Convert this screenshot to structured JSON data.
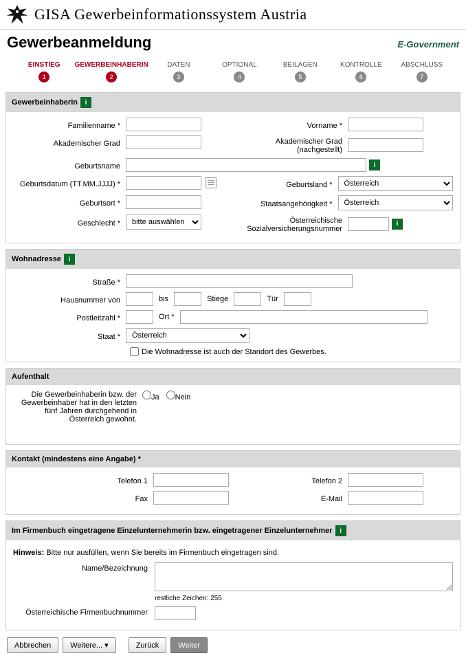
{
  "app": {
    "title": "GISA Gewerbeinformationssystem Austria"
  },
  "page": {
    "title": "Gewerbeanmeldung",
    "egov": "E-Government"
  },
  "stepper": {
    "steps": [
      {
        "label": "EINSTIEG",
        "num": "1",
        "state": "done"
      },
      {
        "label": "GEWERBEINHABERIN",
        "num": "2",
        "state": "current"
      },
      {
        "label": "DATEN",
        "num": "3",
        "state": "todo"
      },
      {
        "label": "OPTIONAL",
        "num": "4",
        "state": "todo"
      },
      {
        "label": "BEILAGEN",
        "num": "5",
        "state": "todo"
      },
      {
        "label": "KONTROLLE",
        "num": "6",
        "state": "todo"
      },
      {
        "label": "ABSCHLUSS",
        "num": "7",
        "state": "todo"
      }
    ]
  },
  "sec_inhaber": {
    "title": "GewerbeinhaberIn",
    "familienname": "Familienname *",
    "vorname": "Vorname *",
    "akad": "Akademischer Grad",
    "akad_nach": "Akademischer Grad (nachgestellt)",
    "geburtsname": "Geburtsname",
    "geburtsdatum": "Geburtsdatum (TT.MM.JJJJ) *",
    "geburtsland": "Geburtsland *",
    "geburtsland_val": "Österreich",
    "geburtsort": "Geburtsort *",
    "staatsang": "Staatsangehörigkeit *",
    "staatsang_val": "Österreich",
    "geschlecht": "Geschlecht *",
    "geschlecht_val": "bitte auswählen",
    "svnr": "Österreichische Sozialversicherungsnummer"
  },
  "sec_wohn": {
    "title": "Wohnadresse",
    "strasse": "Straße *",
    "hausnr": "Hausnummer von",
    "bis": "bis",
    "stiege": "Stiege",
    "tuer": "Tür",
    "plz": "Postleitzahl *",
    "ort": "Ort *",
    "staat": "Staat *",
    "staat_val": "Österreich",
    "chk": "Die Wohnadresse ist auch der Standort des Gewerbes."
  },
  "sec_aufenthalt": {
    "title": "Aufenthalt",
    "text": "Die Gewerbeinhaberin bzw. der Gewerbeinhaber hat in den letzten fünf Jahren durchgehend in Österreich gewohnt.",
    "ja": "Ja",
    "nein": "Nein"
  },
  "sec_kontakt": {
    "title": "Kontakt (mindestens eine Angabe) *",
    "tel1": "Telefon 1",
    "tel2": "Telefon 2",
    "fax": "Fax",
    "email": "E-Mail"
  },
  "sec_firmenbuch": {
    "title": "Im Firmenbuch eingetragene Einzelunternehmerin bzw. eingetragener Einzelunternehmer",
    "hint_bold": "Hinweis:",
    "hint": " Bitte nur ausfüllen, wenn Sie bereits im Firmenbuch eingetragen sind.",
    "name": "Name/Bezeichnung",
    "rest": "restliche Zeichen: 255",
    "fbn": "Österreichische Firmenbuchnummer"
  },
  "footer": {
    "abbrechen": "Abbrechen",
    "weitere": "Weitere... ",
    "zurueck": "Zurück",
    "weiter": "Weiter"
  }
}
